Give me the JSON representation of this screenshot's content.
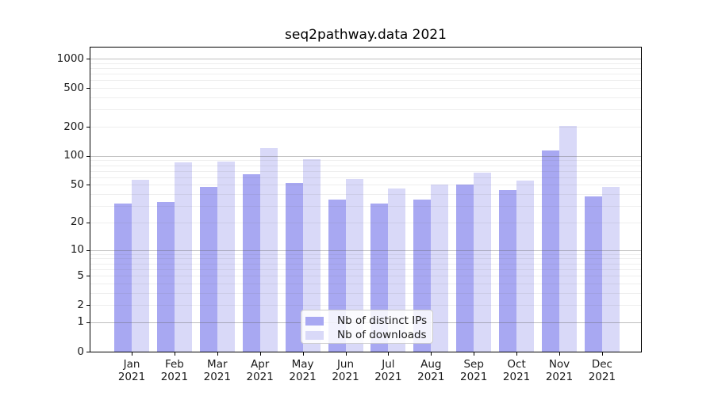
{
  "chart_data": {
    "type": "bar",
    "title": "seq2pathway.data 2021",
    "categories": [
      "Jan",
      "Feb",
      "Mar",
      "Apr",
      "May",
      "Jun",
      "Jul",
      "Aug",
      "Sep",
      "Oct",
      "Nov",
      "Dec"
    ],
    "year": "2021",
    "series": [
      {
        "name": "Nb of distinct IPs",
        "color": "#a8a8f2",
        "values": [
          32,
          33,
          48,
          65,
          52,
          35,
          32,
          35,
          50,
          44,
          114,
          38
        ]
      },
      {
        "name": "Nb of downloads",
        "color": "#d9d9f8",
        "values": [
          57,
          86,
          88,
          120,
          93,
          58,
          46,
          50,
          67,
          56,
          205,
          48
        ]
      }
    ],
    "y_ticks": [
      0,
      1,
      2,
      5,
      10,
      20,
      50,
      100,
      200,
      500,
      1000
    ],
    "y_scale": "log1p",
    "y_axis_top_value": 1300,
    "grid": true,
    "legend_position": "lower center",
    "xlabel": "",
    "ylabel": ""
  },
  "colors": {
    "bar_distinct_ips": "#a8a8f2",
    "bar_downloads": "#d9d9f8",
    "grid_major": "rgba(96,96,96,0.40)",
    "grid_minor": "rgba(96,96,96,0.11)",
    "spine": "#000000",
    "text": "#1a1a1a",
    "legend_border": "#cccccc",
    "background": "#ffffff"
  }
}
